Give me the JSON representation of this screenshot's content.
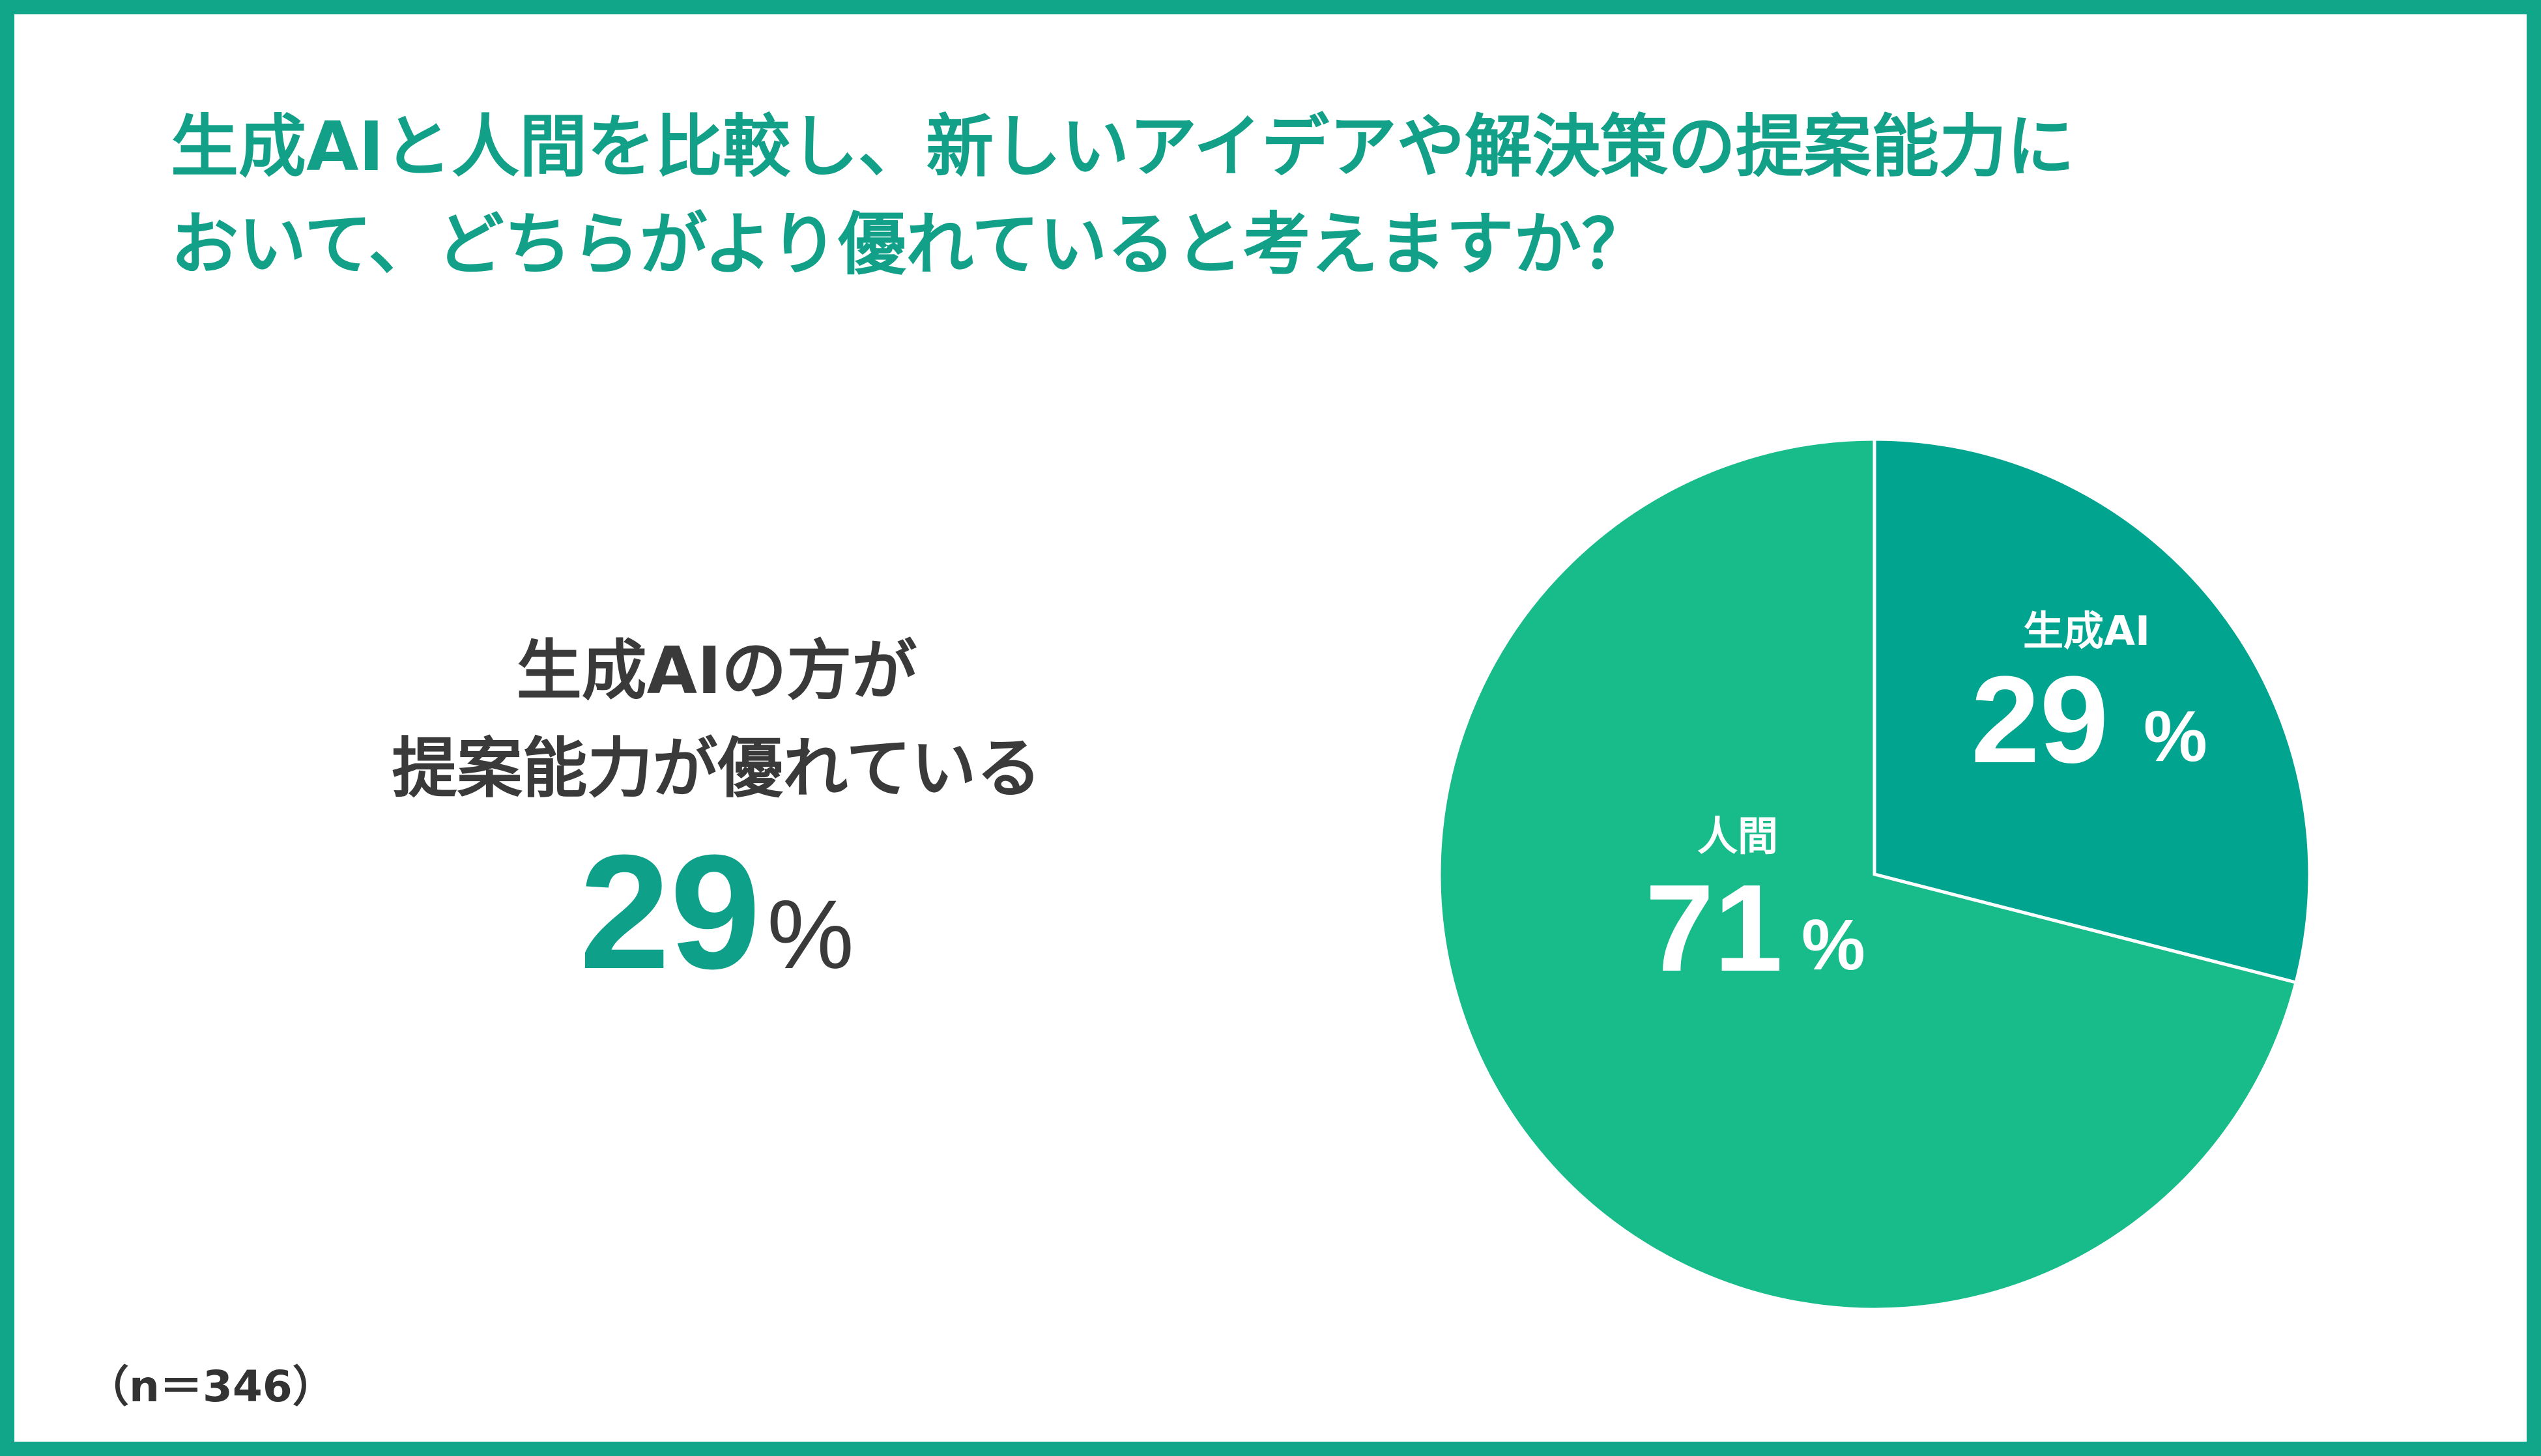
{
  "title": {
    "line1": "生成AIと人間を比較し、新しいアイデアや解決策の提案能力に",
    "line2": "おいて、どちらがより優れていると考えますか？"
  },
  "callout": {
    "line1": "生成AIの方が",
    "line2": "提案能力が優れている",
    "value": "29",
    "unit": "%"
  },
  "sample_size": "（n＝346）",
  "colors": {
    "frame": "#11A58A",
    "title": "#12A088",
    "accent": "#0FA08A",
    "ai_slice": "#00A48F",
    "human_slice": "#17BC8A",
    "text": "#3a3a3a"
  },
  "chart_data": {
    "type": "pie",
    "start_angle": "12 o'clock",
    "direction": "clockwise",
    "slices": [
      {
        "label": "生成AI",
        "value": 29,
        "display": "29",
        "unit": "%",
        "color": "#00A48F"
      },
      {
        "label": "人間",
        "value": 71,
        "display": "71",
        "unit": "%",
        "color": "#17BC8A"
      }
    ]
  }
}
